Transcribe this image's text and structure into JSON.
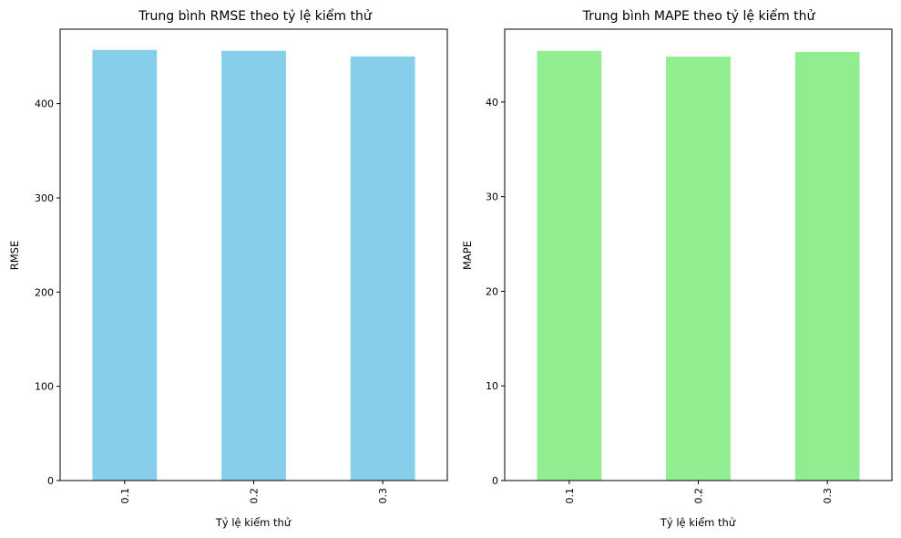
{
  "chart_data": [
    {
      "type": "bar",
      "title": "Trung bình RMSE theo tỷ lệ kiểm thử",
      "xlabel": "Tỷ lệ kiểm thử",
      "ylabel": "RMSE",
      "categories": [
        "0.1",
        "0.2",
        "0.3"
      ],
      "values": [
        457,
        456,
        450
      ],
      "ylim": [
        0,
        479
      ],
      "yticks": [
        0,
        100,
        200,
        300,
        400
      ],
      "color": "#87ceeb",
      "grid": false,
      "xtick_rotation": -90
    },
    {
      "type": "bar",
      "title": "Trung bình MAPE theo tỷ lệ kiểm thử",
      "xlabel": "Tỷ lệ kiểm thử",
      "ylabel": "MAPE",
      "categories": [
        "0.1",
        "0.2",
        "0.3"
      ],
      "values": [
        45.4,
        44.8,
        45.3
      ],
      "ylim": [
        0,
        47.7
      ],
      "yticks": [
        0,
        10,
        20,
        30,
        40
      ],
      "color": "#90ee90",
      "grid": false,
      "xtick_rotation": -90
    }
  ]
}
